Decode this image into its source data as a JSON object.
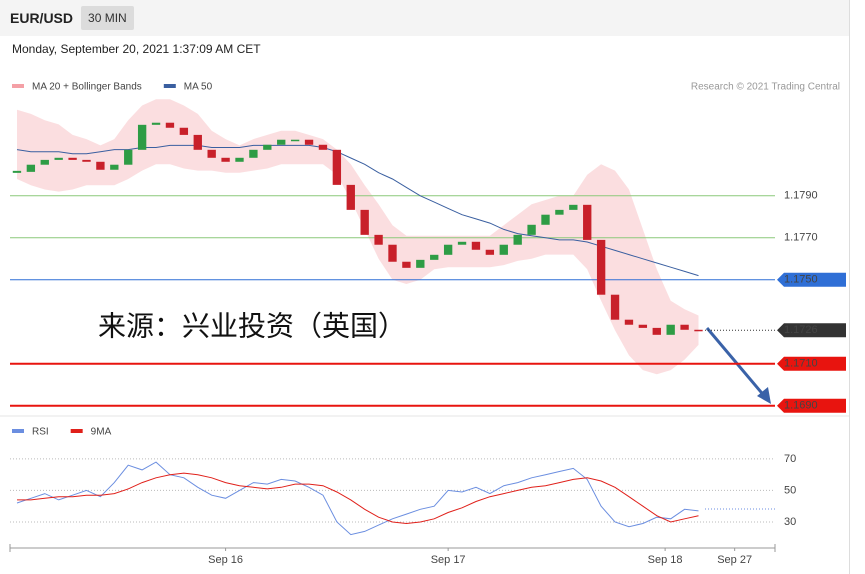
{
  "header": {
    "symbol": "EUR/USD",
    "interval": "30 MIN",
    "timestamp": "Monday, September 20, 2021 1:37:09 AM CET"
  },
  "chart_data": [
    {
      "type": "candlestick",
      "credit": "Research © 2021 Trading Central",
      "watermark": "来源：兴业投资（英国）",
      "up_color": "#2e9c45",
      "down_color": "#c8202a",
      "close": [
        1.18014,
        1.18048,
        1.18071,
        1.18081,
        1.18071,
        1.18062,
        1.18024,
        1.18048,
        1.18119,
        1.18238,
        1.18248,
        1.18224,
        1.1819,
        1.18119,
        1.18081,
        1.18062,
        1.18081,
        1.18119,
        1.18143,
        1.18167,
        1.18167,
        1.18143,
        1.18119,
        1.17952,
        1.17833,
        1.17714,
        1.17667,
        1.17586,
        1.17557,
        1.17595,
        1.17619,
        1.17667,
        1.17681,
        1.17643,
        1.17619,
        1.17667,
        1.17714,
        1.17762,
        1.1781,
        1.17833,
        1.17857,
        1.1769,
        1.17429,
        1.1731,
        1.17286,
        1.17271,
        1.17238,
        1.17286,
        1.17262,
        1.1726
      ],
      "series": [
        {
          "name": "MA 20 + Bollinger Bands",
          "color": "#f4a0a6",
          "upper": [
            1.1831,
            1.1829,
            1.1826,
            1.1824,
            1.1819,
            1.1817,
            1.1814,
            1.1817,
            1.1826,
            1.1833,
            1.1836,
            1.1836,
            1.1833,
            1.1829,
            1.1821,
            1.1817,
            1.1814,
            1.1817,
            1.1819,
            1.1821,
            1.1821,
            1.1819,
            1.1817,
            1.1812,
            1.1805,
            1.1795,
            1.1786,
            1.1776,
            1.1771,
            1.1771,
            1.1771,
            1.1771,
            1.1771,
            1.1771,
            1.1771,
            1.1776,
            1.1781,
            1.1786,
            1.1788,
            1.179,
            1.179,
            1.18,
            1.1805,
            1.1802,
            1.1793,
            1.1774,
            1.1755,
            1.174,
            1.1736,
            1.1733
          ],
          "lower": [
            1.1798,
            1.1795,
            1.1793,
            1.1792,
            1.1793,
            1.1795,
            1.1795,
            1.1795,
            1.1798,
            1.1802,
            1.1805,
            1.1805,
            1.1803,
            1.1802,
            1.1802,
            1.1801,
            1.1801,
            1.1802,
            1.1803,
            1.1805,
            1.1805,
            1.1805,
            1.1805,
            1.18,
            1.1788,
            1.1774,
            1.176,
            1.175,
            1.1748,
            1.175,
            1.1755,
            1.1756,
            1.1756,
            1.1756,
            1.1756,
            1.1757,
            1.1759,
            1.176,
            1.1762,
            1.1762,
            1.1762,
            1.1755,
            1.174,
            1.1726,
            1.1714,
            1.1707,
            1.1705,
            1.1707,
            1.1712,
            1.1719
          ]
        },
        {
          "name": "MA 50",
          "color": "#3a5fa0",
          "values": [
            1.1812,
            1.1811,
            1.1811,
            1.1811,
            1.181,
            1.181,
            1.1811,
            1.1812,
            1.1812,
            1.1813,
            1.1813,
            1.1814,
            1.1814,
            1.1814,
            1.1813,
            1.1813,
            1.1813,
            1.1814,
            1.1814,
            1.1814,
            1.1814,
            1.1814,
            1.1813,
            1.1811,
            1.1808,
            1.1805,
            1.1801,
            1.1798,
            1.1794,
            1.179,
            1.1787,
            1.1784,
            1.1781,
            1.1779,
            1.1777,
            1.1774,
            1.1772,
            1.1771,
            1.177,
            1.1769,
            1.1769,
            1.1768,
            1.1766,
            1.1764,
            1.1762,
            1.176,
            1.1758,
            1.1756,
            1.1754,
            1.1752
          ]
        }
      ],
      "levels": [
        {
          "value": 1.179,
          "label": "1.1790",
          "color": "#8cc97a",
          "boxed": false
        },
        {
          "value": 1.177,
          "label": "1.1770",
          "color": "#8cc97a",
          "boxed": false
        },
        {
          "value": 1.175,
          "label": "1.1750",
          "color": "#2f6fd6",
          "boxed": true
        },
        {
          "value": 1.1726,
          "label": "1.1726",
          "color": "#333333",
          "boxed": true
        },
        {
          "value": 1.171,
          "label": "1.1710",
          "color": "#e8140f",
          "boxed": true
        },
        {
          "value": 1.169,
          "label": "1.1690",
          "color": "#e8140f",
          "boxed": true
        }
      ],
      "xlim": [
        -0.5,
        54.5
      ],
      "ylim": [
        1.1688,
        1.1838
      ]
    },
    {
      "type": "line",
      "series": [
        {
          "name": "RSI",
          "color": "#6b8ee0",
          "values": [
            42,
            45,
            48,
            44,
            47,
            50,
            46,
            55,
            66,
            63,
            68,
            60,
            58,
            52,
            47,
            45,
            50,
            55,
            54,
            57,
            56,
            52,
            47,
            30,
            22,
            24,
            28,
            32,
            35,
            38,
            40,
            50,
            49,
            52,
            48,
            53,
            55,
            58,
            60,
            62,
            64,
            57,
            40,
            30,
            27,
            29,
            33,
            32,
            38,
            37
          ]
        },
        {
          "name": "9MA",
          "color": "#e0201a",
          "values": [
            44,
            44,
            45,
            46,
            46,
            47,
            47,
            48,
            51,
            55,
            58,
            60,
            61,
            60,
            58,
            55,
            53,
            52,
            51,
            52,
            54,
            54,
            53,
            49,
            44,
            38,
            33,
            30,
            29,
            30,
            32,
            36,
            39,
            43,
            46,
            48,
            50,
            52,
            53,
            55,
            57,
            58,
            56,
            52,
            46,
            40,
            34,
            30,
            32,
            34
          ]
        }
      ],
      "xlim": [
        -0.5,
        54.5
      ],
      "ylim": [
        15,
        82
      ],
      "yticks": [
        30,
        50,
        70
      ],
      "xticks": [
        {
          "value": 15,
          "label": "Sep 16"
        },
        {
          "value": 31,
          "label": "Sep 17"
        },
        {
          "value": 46.6,
          "label": "Sep 18"
        },
        {
          "value": 51.6,
          "label": "Sep 27"
        }
      ]
    }
  ]
}
